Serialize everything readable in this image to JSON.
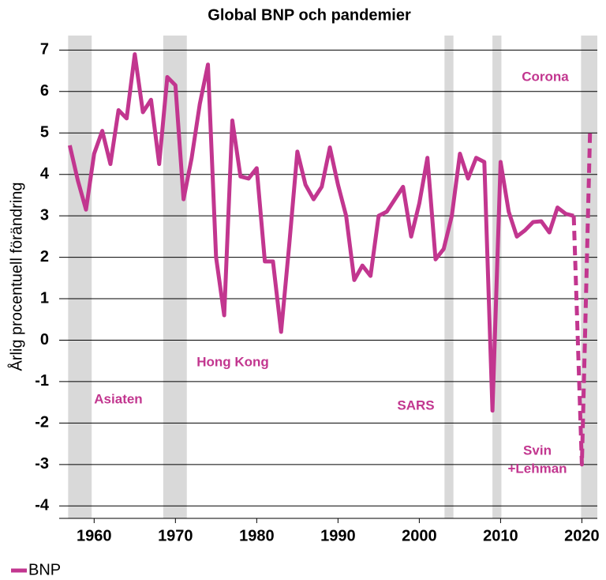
{
  "chart_data": {
    "type": "line",
    "title": "Global BNP och pandemier",
    "ylabel": "Årlig procentuell förändring",
    "x": [
      1957,
      1958,
      1959,
      1960,
      1961,
      1962,
      1963,
      1964,
      1965,
      1966,
      1967,
      1968,
      1969,
      1970,
      1971,
      1972,
      1973,
      1974,
      1975,
      1976,
      1977,
      1978,
      1979,
      1980,
      1981,
      1982,
      1983,
      1984,
      1985,
      1986,
      1987,
      1988,
      1989,
      1990,
      1991,
      1992,
      1993,
      1994,
      1995,
      1996,
      1997,
      1998,
      1999,
      2000,
      2001,
      2002,
      2003,
      2004,
      2005,
      2006,
      2007,
      2008,
      2009,
      2010,
      2011,
      2012,
      2013,
      2014,
      2015,
      2016,
      2017,
      2018,
      2019,
      2020,
      2021
    ],
    "series": [
      {
        "name": "BNP",
        "color": "#c2368f",
        "dash_from": 2019,
        "values": [
          4.7,
          3.85,
          3.15,
          4.5,
          5.05,
          4.25,
          5.55,
          5.35,
          6.9,
          5.5,
          5.8,
          4.25,
          6.35,
          6.15,
          3.4,
          4.4,
          5.7,
          6.65,
          2.0,
          0.6,
          5.3,
          3.95,
          3.9,
          4.15,
          1.9,
          1.9,
          0.2,
          2.3,
          4.55,
          3.75,
          3.4,
          3.7,
          4.65,
          3.75,
          3.0,
          1.45,
          1.8,
          1.55,
          3.0,
          3.1,
          3.4,
          3.7,
          2.5,
          3.3,
          4.4,
          1.95,
          2.2,
          3.0,
          4.5,
          3.9,
          4.4,
          4.3,
          -1.7,
          4.3,
          3.1,
          2.5,
          2.65,
          2.85,
          2.87,
          2.6,
          3.2,
          3.05,
          3.0,
          -3.0,
          5.0
        ]
      }
    ],
    "bands": [
      [
        1956.8,
        1959.7
      ],
      [
        1968.5,
        1971.4
      ],
      [
        2003.1,
        2004.2
      ],
      [
        2009.0,
        2010.1
      ],
      [
        2019.9,
        2021.9
      ]
    ],
    "band_color": "#d9d9d9",
    "annotations": [
      "Asiaten",
      "Hong Kong",
      "SARS",
      "Svin",
      "+Lehman",
      "Corona"
    ],
    "xlim": [
      1955.7,
      2021.9
    ],
    "xticks": [
      1960,
      1970,
      1980,
      1990,
      2000,
      2010,
      2020
    ],
    "ylim": [
      -4.3,
      7.35
    ],
    "yticks": [
      -4,
      -3,
      -2,
      -1,
      0,
      1,
      2,
      3,
      4,
      5,
      6,
      7
    ],
    "grid": true,
    "legend": "bottom-left"
  }
}
